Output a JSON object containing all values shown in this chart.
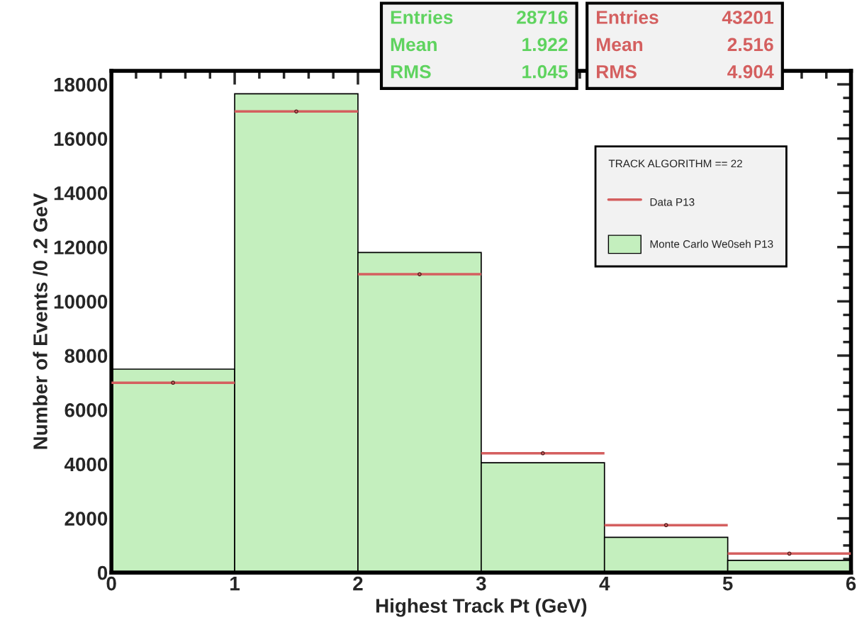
{
  "chart_data": {
    "type": "histogram",
    "xlabel": "Highest Track Pt (GeV)",
    "ylabel": "Number of Events /0 .2 GeV",
    "legend_title": "TRACK ALGORITHM == 22",
    "bins": [
      0,
      1,
      2,
      3,
      4,
      5,
      6
    ],
    "series": [
      {
        "name": "Monte Carlo We0seh P13",
        "color": "#c4efbe",
        "values": [
          7500,
          17650,
          11800,
          4050,
          1300,
          450
        ]
      },
      {
        "name": "Data P13",
        "type": "scatter",
        "color": "#d45f5f",
        "marker": "circle",
        "x": [
          0.5,
          1.5,
          2.5,
          3.5,
          4.5,
          5.5
        ],
        "values": [
          7000,
          17000,
          11000,
          4400,
          1750,
          700
        ],
        "xerrors": [
          0.5,
          0.5,
          0.5,
          0.5,
          0.5,
          0.5
        ]
      }
    ],
    "annotations": [
      "Entries 28716",
      "Mean 1.922",
      "RMS 1.045",
      "Entries 43201",
      "Mean 2.516",
      "RMS 4.904"
    ],
    "xlim": [
      0,
      6
    ],
    "xticks": [
      0,
      1,
      2,
      3,
      4,
      5,
      6
    ],
    "ylim": [
      0,
      18500
    ],
    "yticks": [
      0,
      2000,
      4000,
      6000,
      8000,
      10000,
      12000,
      14000,
      16000,
      18000
    ],
    "grid": false,
    "legend": "top right"
  }
}
